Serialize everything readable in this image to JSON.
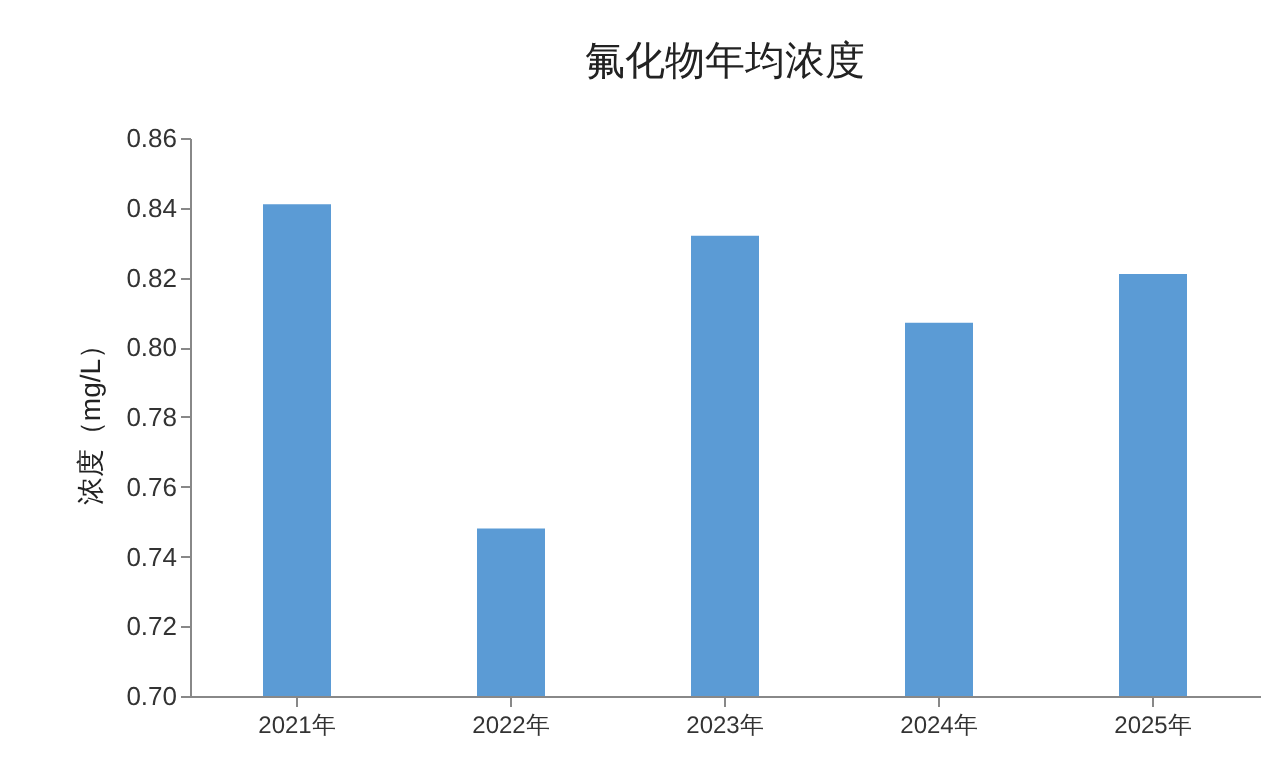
{
  "chart_data": {
    "type": "bar",
    "title": "氟化物年均浓度",
    "ylabel": "浓度（mg/L）",
    "categories": [
      "2021年",
      "2022年",
      "2023年",
      "2024年",
      "2025年"
    ],
    "values": [
      0.841,
      0.748,
      0.832,
      0.807,
      0.821
    ],
    "color": "#5b9bd5",
    "ylim": [
      0.7,
      0.86
    ],
    "yticks": [
      {
        "value": 0.7,
        "label": "0.70"
      },
      {
        "value": 0.72,
        "label": "0.72"
      },
      {
        "value": 0.74,
        "label": "0.74"
      },
      {
        "value": 0.76,
        "label": "0.76"
      },
      {
        "value": 0.78,
        "label": "0.78"
      },
      {
        "value": 0.8,
        "label": "0.80"
      },
      {
        "value": 0.82,
        "label": "0.82"
      },
      {
        "value": 0.84,
        "label": "0.84"
      },
      {
        "value": 0.86,
        "label": "0.86"
      }
    ],
    "grid": false
  }
}
